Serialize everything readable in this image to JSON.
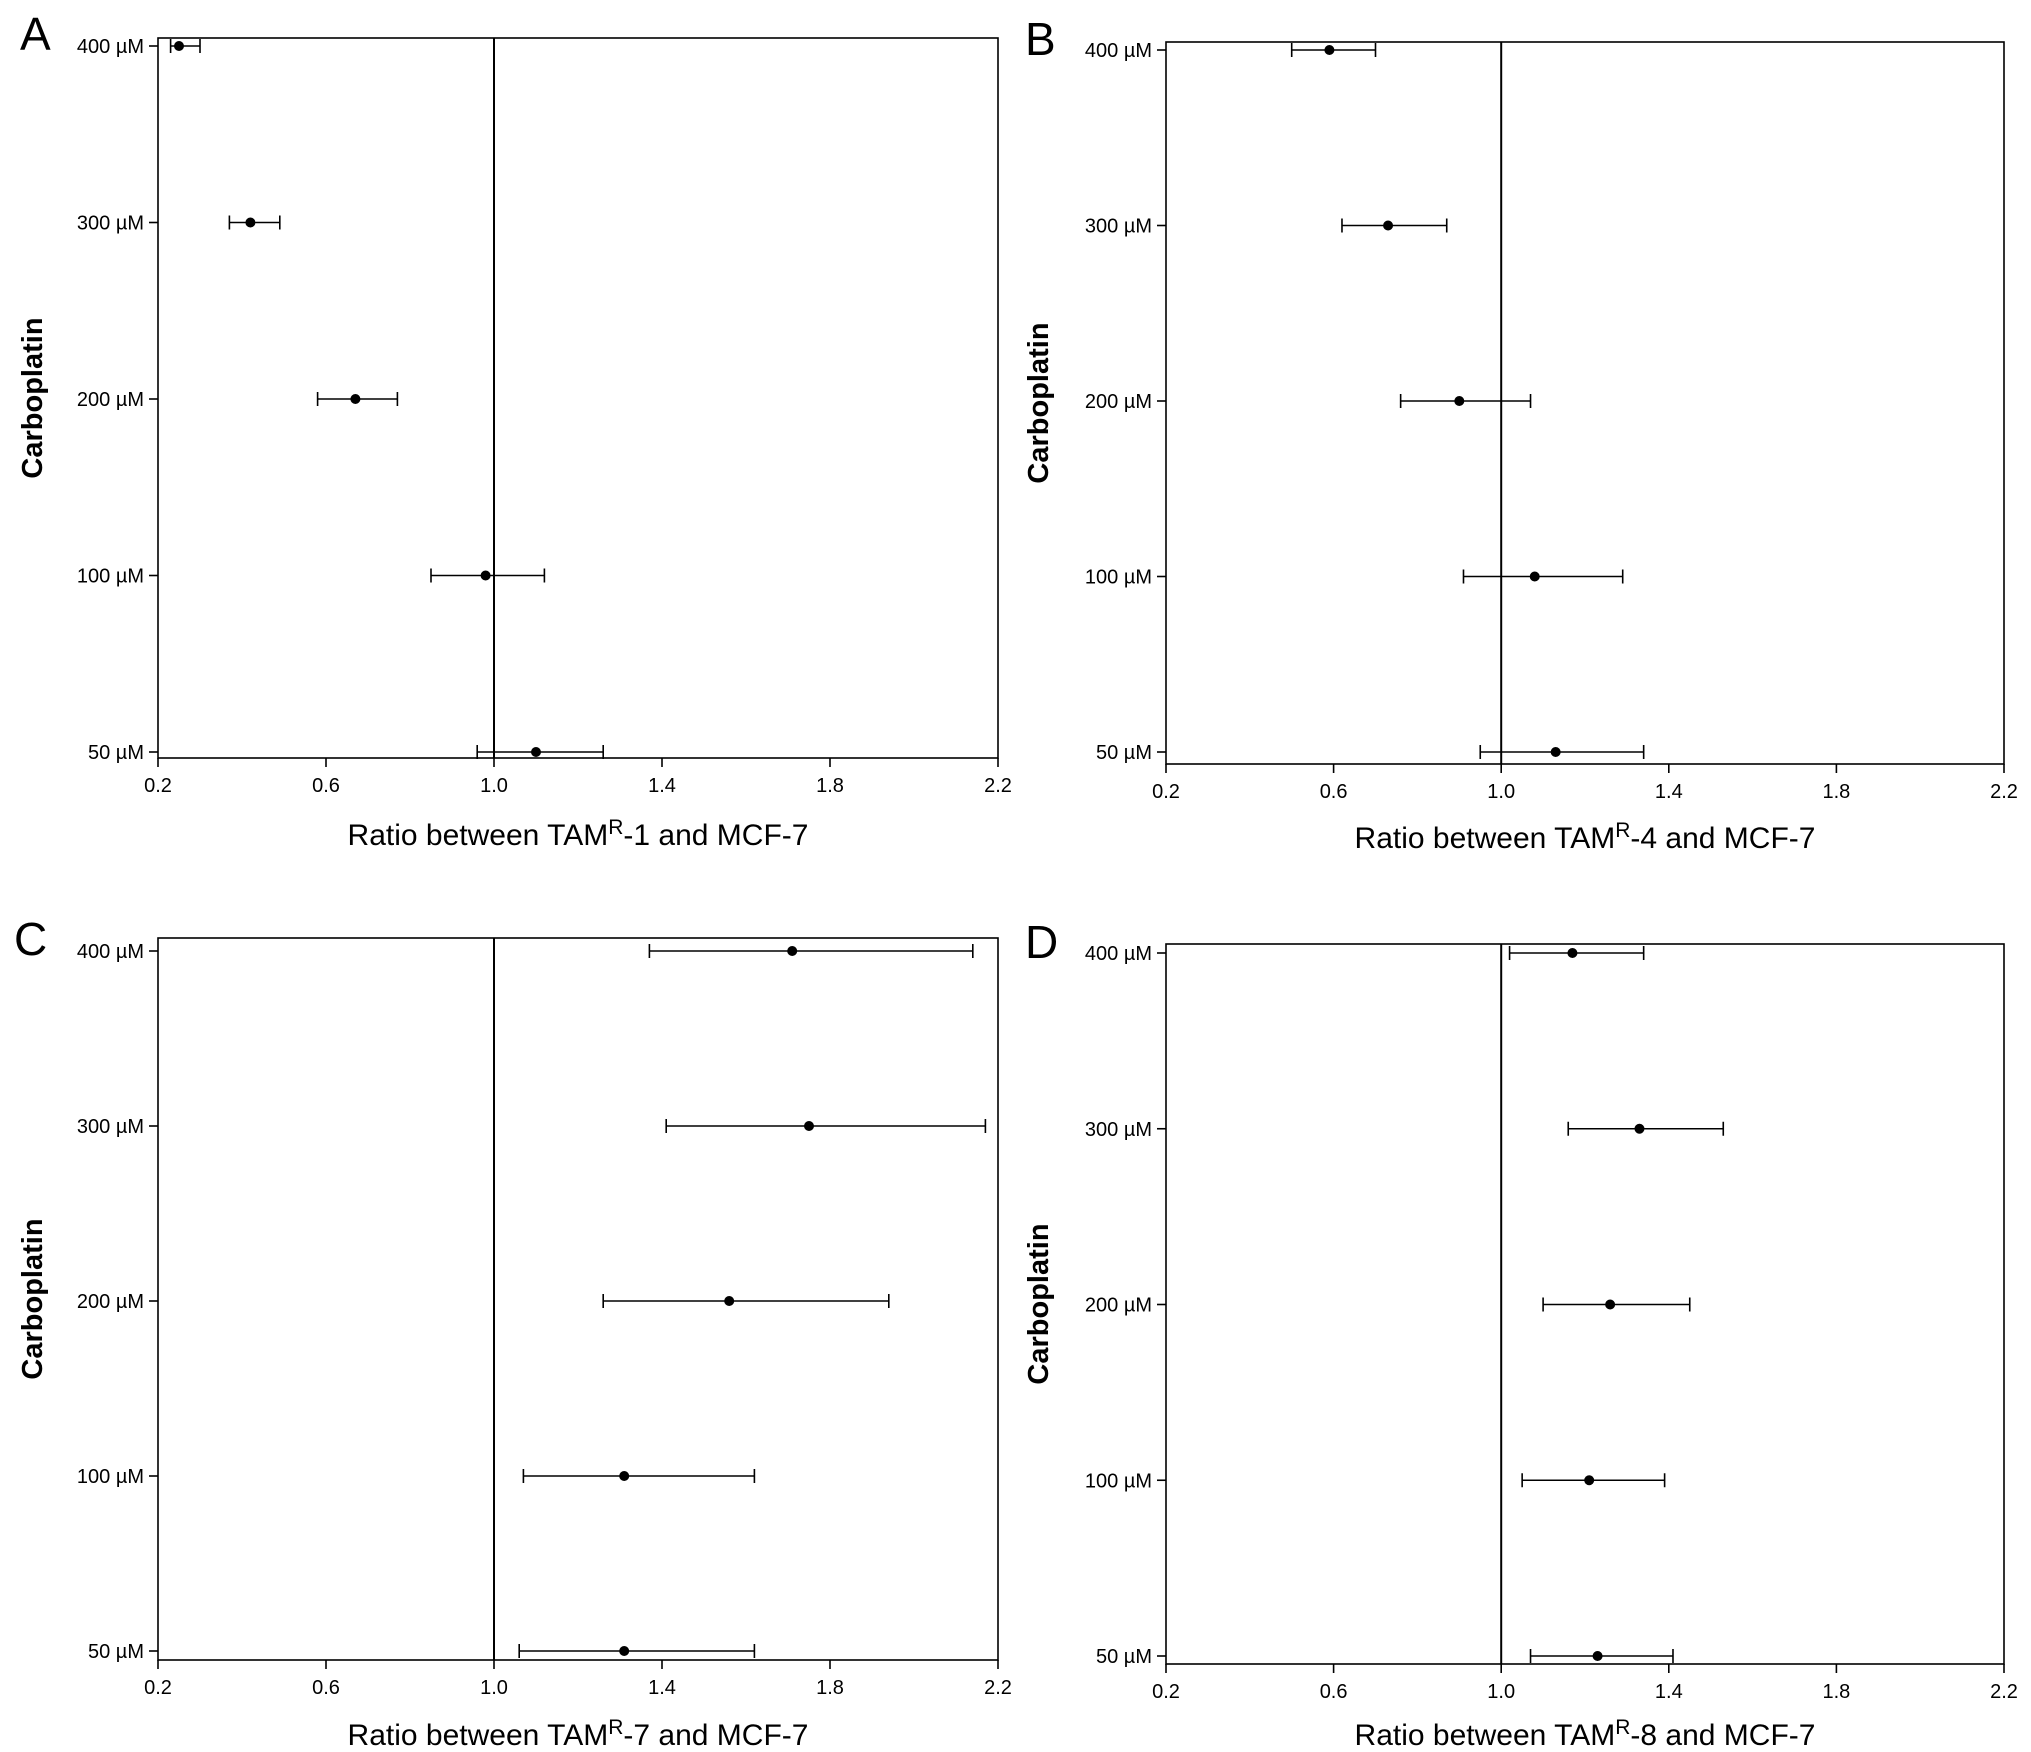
{
  "figure": {
    "colors": {
      "axis": "#000000",
      "marker": "#000000",
      "background": "#ffffff"
    }
  },
  "chart_data": [
    {
      "type": "scatter",
      "panel": "A",
      "xlabel": "Ratio between TAMR-1 and MCF-7",
      "xlabel_parts": {
        "prefix": "Ratio between TAM",
        "sup": "R",
        "suffix": "-1 and MCF-7"
      },
      "ylabel": "Carboplatin",
      "xlim": [
        0.2,
        2.2
      ],
      "xticks": [
        "0.2",
        "0.6",
        "1.0",
        "1.4",
        "1.8",
        "2.2"
      ],
      "reference_line_x": 1.0,
      "categories": [
        "400 µM",
        "300 µM",
        "200 µM",
        "100 µM",
        "50 µM"
      ],
      "points": [
        {
          "label": "400 µM",
          "x": 0.25,
          "low": 0.23,
          "high": 0.3
        },
        {
          "label": "300 µM",
          "x": 0.42,
          "low": 0.37,
          "high": 0.49
        },
        {
          "label": "200 µM",
          "x": 0.67,
          "low": 0.58,
          "high": 0.77
        },
        {
          "label": "100 µM",
          "x": 0.98,
          "low": 0.85,
          "high": 1.12
        },
        {
          "label": "50 µM",
          "x": 1.1,
          "low": 0.96,
          "high": 1.26
        }
      ]
    },
    {
      "type": "scatter",
      "panel": "B",
      "xlabel": "Ratio between TAMR-4 and MCF-7",
      "xlabel_parts": {
        "prefix": "Ratio between TAM",
        "sup": "R",
        "suffix": "-4 and MCF-7"
      },
      "ylabel": "Carboplatin",
      "xlim": [
        0.2,
        2.2
      ],
      "xticks": [
        "0.2",
        "0.6",
        "1.0",
        "1.4",
        "1.8",
        "2.2"
      ],
      "reference_line_x": 1.0,
      "categories": [
        "400 µM",
        "300 µM",
        "200 µM",
        "100 µM",
        "50 µM"
      ],
      "points": [
        {
          "label": "400 µM",
          "x": 0.59,
          "low": 0.5,
          "high": 0.7
        },
        {
          "label": "300 µM",
          "x": 0.73,
          "low": 0.62,
          "high": 0.87
        },
        {
          "label": "200 µM",
          "x": 0.9,
          "low": 0.76,
          "high": 1.07
        },
        {
          "label": "100 µM",
          "x": 1.08,
          "low": 0.91,
          "high": 1.29
        },
        {
          "label": "50 µM",
          "x": 1.13,
          "low": 0.95,
          "high": 1.34
        }
      ]
    },
    {
      "type": "scatter",
      "panel": "C",
      "xlabel": "Ratio between TAMR-7 and MCF-7",
      "xlabel_parts": {
        "prefix": "Ratio between TAM",
        "sup": "R",
        "suffix": "-7 and MCF-7"
      },
      "ylabel": "Carboplatin",
      "xlim": [
        0.2,
        2.2
      ],
      "xticks": [
        "0.2",
        "0.6",
        "1.0",
        "1.4",
        "1.8",
        "2.2"
      ],
      "reference_line_x": 1.0,
      "categories": [
        "400  µM",
        "300  µM",
        "200  µM",
        "100  µM",
        "50  µM"
      ],
      "points": [
        {
          "label": "400  µM",
          "x": 1.71,
          "low": 1.37,
          "high": 2.14
        },
        {
          "label": "300  µM",
          "x": 1.75,
          "low": 1.41,
          "high": 2.17
        },
        {
          "label": "200  µM",
          "x": 1.56,
          "low": 1.26,
          "high": 1.94
        },
        {
          "label": "100  µM",
          "x": 1.31,
          "low": 1.07,
          "high": 1.62
        },
        {
          "label": "50  µM",
          "x": 1.31,
          "low": 1.06,
          "high": 1.62
        }
      ]
    },
    {
      "type": "scatter",
      "panel": "D",
      "xlabel": "Ratio between TAMR-8 and MCF-7",
      "xlabel_parts": {
        "prefix": "Ratio between TAM",
        "sup": "R",
        "suffix": "-8 and MCF-7"
      },
      "ylabel": "Carboplatin",
      "xlim": [
        0.2,
        2.2
      ],
      "xticks": [
        "0.2",
        "0.6",
        "1.0",
        "1.4",
        "1.8",
        "2.2"
      ],
      "reference_line_x": 1.0,
      "categories": [
        "400 µM",
        "300 µM",
        "200 µM",
        "100 µM",
        "50 µM"
      ],
      "points": [
        {
          "label": "400 µM",
          "x": 1.17,
          "low": 1.02,
          "high": 1.34
        },
        {
          "label": "300 µM",
          "x": 1.33,
          "low": 1.16,
          "high": 1.53
        },
        {
          "label": "200 µM",
          "x": 1.26,
          "low": 1.1,
          "high": 1.45
        },
        {
          "label": "100 µM",
          "x": 1.21,
          "low": 1.05,
          "high": 1.39
        },
        {
          "label": "50 µM",
          "x": 1.23,
          "low": 1.07,
          "high": 1.41
        }
      ]
    }
  ]
}
